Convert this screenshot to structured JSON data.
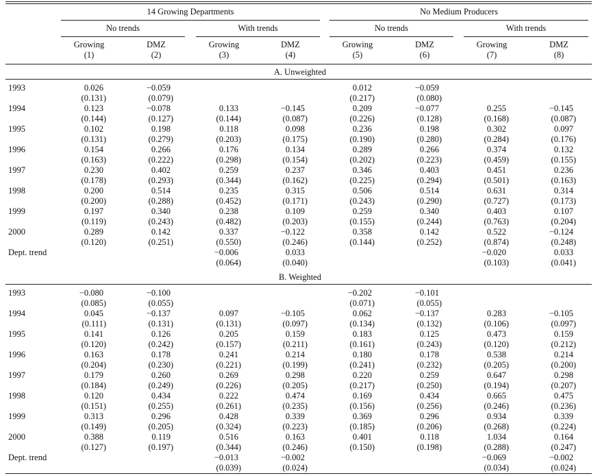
{
  "header": {
    "groups": [
      {
        "title": "14 Growing Departments",
        "subgroups": [
          "No trends",
          "With trends"
        ]
      },
      {
        "title": "No Medium Producers",
        "subgroups": [
          "No trends",
          "With trends"
        ]
      }
    ],
    "columns": [
      {
        "name": "Growing",
        "number": "(1)"
      },
      {
        "name": "DMZ",
        "number": "(2)"
      },
      {
        "name": "Growing",
        "number": "(3)"
      },
      {
        "name": "DMZ",
        "number": "(4)"
      },
      {
        "name": "Growing",
        "number": "(5)"
      },
      {
        "name": "DMZ",
        "number": "(6)"
      },
      {
        "name": "Growing",
        "number": "(7)"
      },
      {
        "name": "DMZ",
        "number": "(8)"
      }
    ]
  },
  "panels": [
    {
      "title": "A. Unweighted",
      "rows": [
        {
          "label": "1993",
          "estimates": [
            "0.026",
            "−0.059",
            null,
            null,
            "0.012",
            "−0.059",
            null,
            null
          ],
          "se": [
            "(0.131)",
            "(0.079)",
            null,
            null,
            "(0.217)",
            "(0.080)",
            null,
            null
          ]
        },
        {
          "label": "1994",
          "estimates": [
            "0.123",
            "−0.078",
            "0.133",
            "−0.145",
            "0.209",
            "−0.077",
            "0.255",
            "−0.145"
          ],
          "se": [
            "(0.144)",
            "(0.127)",
            "(0.144)",
            "(0.087)",
            "(0.226)",
            "(0.128)",
            "(0.168)",
            "(0.087)"
          ]
        },
        {
          "label": "1995",
          "estimates": [
            "0.102",
            "0.198",
            "0.118",
            "0.098",
            "0.236",
            "0.198",
            "0.302",
            "0.097"
          ],
          "se": [
            "(0.131)",
            "(0.279)",
            "(0.203)",
            "(0.175)",
            "(0.190)",
            "(0.280)",
            "(0.284)",
            "(0.176)"
          ]
        },
        {
          "label": "1996",
          "estimates": [
            "0.154",
            "0.266",
            "0.176",
            "0.134",
            "0.289",
            "0.266",
            "0.374",
            "0.132"
          ],
          "se": [
            "(0.163)",
            "(0.222)",
            "(0.298)",
            "(0.154)",
            "(0.202)",
            "(0.223)",
            "(0.459)",
            "(0.155)"
          ]
        },
        {
          "label": "1997",
          "estimates": [
            "0.230",
            "0.402",
            "0.259",
            "0.237",
            "0.346",
            "0.403",
            "0.451",
            "0.236"
          ],
          "se": [
            "(0.178)",
            "(0.293)",
            "(0.344)",
            "(0.162)",
            "(0.225)",
            "(0.294)",
            "(0.501)",
            "(0.163)"
          ]
        },
        {
          "label": "1998",
          "estimates": [
            "0.200",
            "0.514",
            "0.235",
            "0.315",
            "0.506",
            "0.514",
            "0.631",
            "0.314"
          ],
          "se": [
            "(0.200)",
            "(0.288)",
            "(0.452)",
            "(0.171)",
            "(0.243)",
            "(0.290)",
            "(0.727)",
            "(0.173)"
          ]
        },
        {
          "label": "1999",
          "estimates": [
            "0.197",
            "0.340",
            "0.238",
            "0.109",
            "0.259",
            "0.340",
            "0.403",
            "0.107"
          ],
          "se": [
            "(0.119)",
            "(0.243)",
            "(0.482)",
            "(0.203)",
            "(0.155)",
            "(0.244)",
            "(0.763)",
            "(0.204)"
          ]
        },
        {
          "label": "2000",
          "estimates": [
            "0.289",
            "0.142",
            "0.337",
            "−0.122",
            "0.358",
            "0.142",
            "0.522",
            "−0.124"
          ],
          "se": [
            "(0.120)",
            "(0.251)",
            "(0.550)",
            "(0.246)",
            "(0.144)",
            "(0.252)",
            "(0.874)",
            "(0.248)"
          ]
        },
        {
          "label": "Dept. trend",
          "estimates": [
            null,
            null,
            "−0.006",
            "0.033",
            null,
            null,
            "−0.020",
            "0.033"
          ],
          "se": [
            null,
            null,
            "(0.064)",
            "(0.040)",
            null,
            null,
            "(0.103)",
            "(0.041)"
          ]
        }
      ]
    },
    {
      "title": "B. Weighted",
      "rows": [
        {
          "label": "1993",
          "estimates": [
            "−0.080",
            "−0.100",
            null,
            null,
            "−0.202",
            "−0.101",
            null,
            null
          ],
          "se": [
            "(0.085)",
            "(0.055)",
            null,
            null,
            "(0.071)",
            "(0.055)",
            null,
            null
          ]
        },
        {
          "label": "1994",
          "estimates": [
            "0.045",
            "−0.137",
            "0.097",
            "−0.105",
            "0.062",
            "−0.137",
            "0.283",
            "−0.105"
          ],
          "se": [
            "(0.111)",
            "(0.131)",
            "(0.131)",
            "(0.097)",
            "(0.134)",
            "(0.132)",
            "(0.106)",
            "(0.097)"
          ]
        },
        {
          "label": "1995",
          "estimates": [
            "0.141",
            "0.126",
            "0.205",
            "0.159",
            "0.183",
            "0.125",
            "0.473",
            "0.159"
          ],
          "se": [
            "(0.120)",
            "(0.242)",
            "(0.157)",
            "(0.211)",
            "(0.161)",
            "(0.243)",
            "(0.120)",
            "(0.212)"
          ]
        },
        {
          "label": "1996",
          "estimates": [
            "0.163",
            "0.178",
            "0.241",
            "0.214",
            "0.180",
            "0.178",
            "0.538",
            "0.214"
          ],
          "se": [
            "(0.204)",
            "(0.230)",
            "(0.221)",
            "(0.199)",
            "(0.241)",
            "(0.232)",
            "(0.205)",
            "(0.200)"
          ]
        },
        {
          "label": "1997",
          "estimates": [
            "0.179",
            "0.260",
            "0.269",
            "0.298",
            "0.220",
            "0.259",
            "0.647",
            "0.298"
          ],
          "se": [
            "(0.184)",
            "(0.249)",
            "(0.226)",
            "(0.205)",
            "(0.217)",
            "(0.250)",
            "(0.194)",
            "(0.207)"
          ]
        },
        {
          "label": "1998",
          "estimates": [
            "0.120",
            "0.434",
            "0.222",
            "0.474",
            "0.169",
            "0.434",
            "0.665",
            "0.475"
          ],
          "se": [
            "(0.151)",
            "(0.255)",
            "(0.261)",
            "(0.235)",
            "(0.156)",
            "(0.256)",
            "(0.246)",
            "(0.236)"
          ]
        },
        {
          "label": "1999",
          "estimates": [
            "0.313",
            "0.296",
            "0.428",
            "0.339",
            "0.369",
            "0.296",
            "0.934",
            "0.339"
          ],
          "se": [
            "(0.149)",
            "(0.205)",
            "(0.324)",
            "(0.223)",
            "(0.185)",
            "(0.206)",
            "(0.268)",
            "(0.224)"
          ]
        },
        {
          "label": "2000",
          "estimates": [
            "0.388",
            "0.119",
            "0.516",
            "0.163",
            "0.401",
            "0.118",
            "1.034",
            "0.164"
          ],
          "se": [
            "(0.127)",
            "(0.197)",
            "(0.344)",
            "(0.246)",
            "(0.150)",
            "(0.198)",
            "(0.288)",
            "(0.247)"
          ]
        },
        {
          "label": "Dept. trend",
          "estimates": [
            null,
            null,
            "−0.013",
            "−0.002",
            null,
            null,
            "−0.069",
            "−0.002"
          ],
          "se": [
            null,
            null,
            "(0.039)",
            "(0.024)",
            null,
            null,
            "(0.034)",
            "(0.024)"
          ]
        }
      ]
    }
  ]
}
